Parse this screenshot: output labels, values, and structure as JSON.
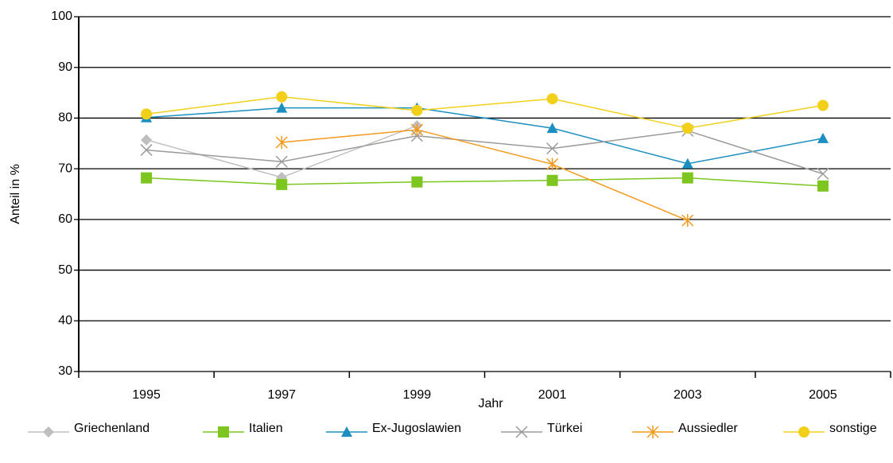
{
  "chart_data": {
    "type": "line",
    "x_label": "Jahr",
    "y_label": "Anteil in %",
    "categories": [
      "1995",
      "1997",
      "1999",
      "2001",
      "2003",
      "2005"
    ],
    "ylim": [
      30,
      100
    ],
    "yticks": [
      30,
      40,
      50,
      60,
      70,
      80,
      90,
      100
    ],
    "grid": true,
    "series": [
      {
        "name": "Griechenland",
        "color": "#bfbfbf",
        "marker": "diamond",
        "values": [
          75.7,
          68.3,
          78.5,
          null,
          null,
          null
        ]
      },
      {
        "name": "Italien",
        "color": "#7dc51f",
        "marker": "square",
        "values": [
          68.2,
          66.9,
          67.4,
          67.7,
          68.2,
          66.6
        ]
      },
      {
        "name": "Ex-Jugoslawien",
        "color": "#1b8fc0",
        "marker": "triangle",
        "values": [
          80.1,
          82,
          82,
          78,
          71,
          76
        ]
      },
      {
        "name": "Türkei",
        "color": "#9a9a9a",
        "marker": "x",
        "values": [
          73.7,
          71.4,
          76.5,
          74,
          77.5,
          69
        ]
      },
      {
        "name": "Aussiedler",
        "color": "#f39a1d",
        "marker": "star",
        "values": [
          null,
          75.2,
          77.7,
          70.9,
          59.8,
          null
        ]
      },
      {
        "name": "sonstige",
        "color": "#f2d01a",
        "marker": "circle",
        "values": [
          80.8,
          84.2,
          81.5,
          83.8,
          78,
          82.5
        ]
      }
    ]
  }
}
